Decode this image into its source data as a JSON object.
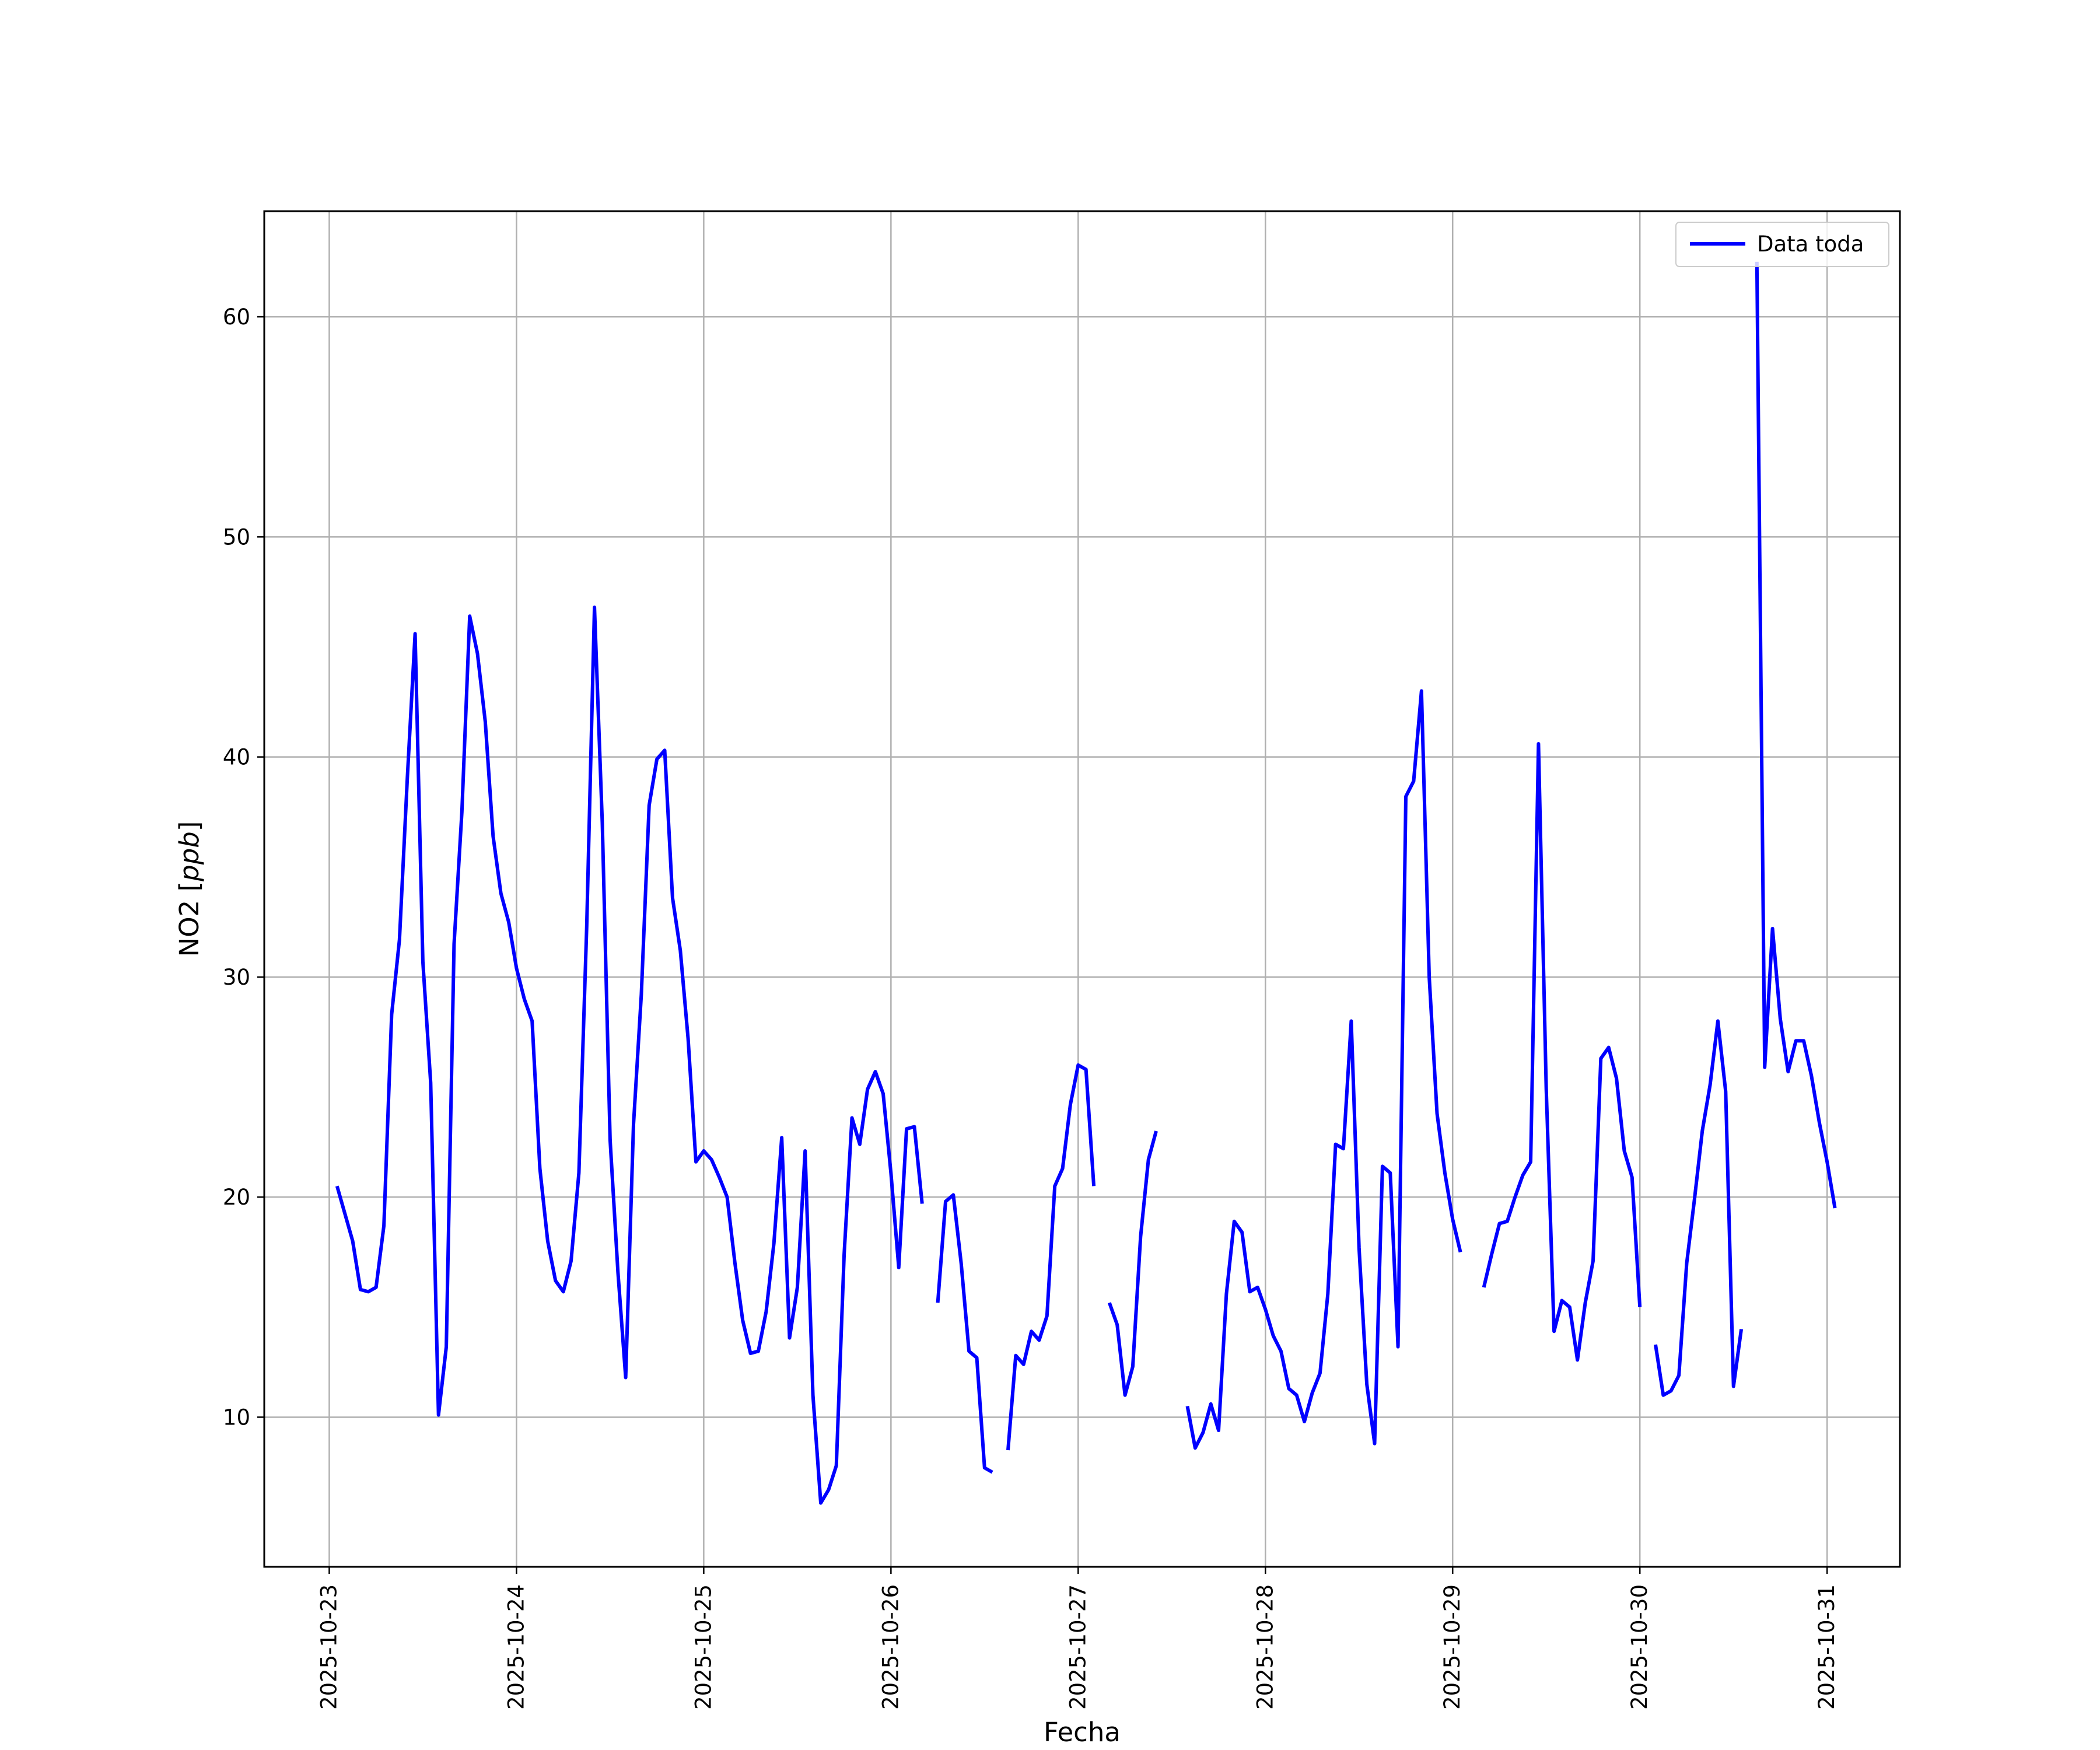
{
  "chart_data": {
    "type": "line",
    "title": "",
    "xlabel": "Fecha",
    "ylabel": "NO2 [ppb]",
    "ylabel_parts": {
      "prefix": "NO2 [",
      "unit": "ppb",
      "suffix": "]"
    },
    "xlim": [
      "2025-10-22 15:40",
      "2025-10-31 09:20"
    ],
    "ylim": [
      3.2,
      64.8
    ],
    "xticks": [
      "2025-10-23",
      "2025-10-24",
      "2025-10-25",
      "2025-10-26",
      "2025-10-27",
      "2025-10-28",
      "2025-10-29",
      "2025-10-30",
      "2025-10-31"
    ],
    "yticks": [
      10,
      20,
      30,
      40,
      50,
      60
    ],
    "grid": true,
    "legend_position": "top-right",
    "series": [
      {
        "name": "Data toda",
        "color": "#0000ff",
        "points": [
          [
            "2025-10-23 01:00",
            20.5
          ],
          [
            "2025-10-23 03:00",
            18.0
          ],
          [
            "2025-10-23 04:00",
            15.8
          ],
          [
            "2025-10-23 05:00",
            15.7
          ],
          [
            "2025-10-23 06:00",
            15.9
          ],
          [
            "2025-10-23 07:00",
            18.7
          ],
          [
            "2025-10-23 08:00",
            28.3
          ],
          [
            "2025-10-23 09:00",
            31.7
          ],
          [
            "2025-10-23 10:00",
            39.0
          ],
          [
            "2025-10-23 11:00",
            45.6
          ],
          [
            "2025-10-23 12:00",
            30.7
          ],
          [
            "2025-10-23 13:00",
            25.2
          ],
          [
            "2025-10-23 14:00",
            10.1
          ],
          [
            "2025-10-23 15:00",
            13.2
          ],
          [
            "2025-10-23 16:00",
            31.5
          ],
          [
            "2025-10-23 17:00",
            37.5
          ],
          [
            "2025-10-23 18:00",
            46.4
          ],
          [
            "2025-10-23 19:00",
            44.7
          ],
          [
            "2025-10-23 20:00",
            41.6
          ],
          [
            "2025-10-23 21:00",
            36.4
          ],
          [
            "2025-10-23 22:00",
            33.8
          ],
          [
            "2025-10-23 23:00",
            32.5
          ],
          [
            "2025-10-24 00:00",
            30.4
          ],
          [
            "2025-10-24 01:00",
            29.0
          ],
          [
            "2025-10-24 02:00",
            28.0
          ],
          [
            "2025-10-24 03:00",
            21.3
          ],
          [
            "2025-10-24 04:00",
            18.0
          ],
          [
            "2025-10-24 05:00",
            16.2
          ],
          [
            "2025-10-24 06:00",
            15.7
          ],
          [
            "2025-10-24 07:00",
            17.1
          ],
          [
            "2025-10-24 08:00",
            21.1
          ],
          [
            "2025-10-24 09:00",
            32.3
          ],
          [
            "2025-10-24 10:00",
            46.8
          ],
          [
            "2025-10-24 11:00",
            37.0
          ],
          [
            "2025-10-24 12:00",
            22.6
          ],
          [
            "2025-10-24 13:00",
            16.6
          ],
          [
            "2025-10-24 14:00",
            11.8
          ],
          [
            "2025-10-24 15:00",
            23.3
          ],
          [
            "2025-10-24 16:00",
            29.2
          ],
          [
            "2025-10-24 17:00",
            37.8
          ],
          [
            "2025-10-24 18:00",
            39.9
          ],
          [
            "2025-10-24 19:00",
            40.3
          ],
          [
            "2025-10-24 20:00",
            33.6
          ],
          [
            "2025-10-24 21:00",
            31.2
          ],
          [
            "2025-10-24 22:00",
            27.2
          ],
          [
            "2025-10-24 23:00",
            21.6
          ],
          [
            "2025-10-25 00:00",
            22.1
          ],
          [
            "2025-10-25 01:00",
            21.7
          ],
          [
            "2025-10-25 02:00",
            20.9
          ],
          [
            "2025-10-25 03:00",
            20.0
          ],
          [
            "2025-10-25 04:00",
            17.0
          ],
          [
            "2025-10-25 05:00",
            14.4
          ],
          [
            "2025-10-25 06:00",
            12.9
          ],
          [
            "2025-10-25 07:00",
            13.0
          ],
          [
            "2025-10-25 08:00",
            14.8
          ],
          [
            "2025-10-25 09:00",
            17.9
          ],
          [
            "2025-10-25 10:00",
            22.7
          ],
          [
            "2025-10-25 11:00",
            13.6
          ],
          [
            "2025-10-25 12:00",
            15.9
          ],
          [
            "2025-10-25 13:00",
            22.1
          ],
          [
            "2025-10-25 14:00",
            11.0
          ],
          [
            "2025-10-25 15:00",
            6.1
          ],
          [
            "2025-10-25 16:00",
            6.7
          ],
          [
            "2025-10-25 17:00",
            7.8
          ],
          [
            "2025-10-25 18:00",
            17.4
          ],
          [
            "2025-10-25 19:00",
            23.6
          ],
          [
            "2025-10-25 20:00",
            22.4
          ],
          [
            "2025-10-25 21:00",
            24.9
          ],
          [
            "2025-10-25 22:00",
            25.7
          ],
          [
            "2025-10-25 23:00",
            24.7
          ],
          [
            "2025-10-26 00:00",
            21.1
          ],
          [
            "2025-10-26 01:00",
            16.8
          ],
          [
            "2025-10-26 02:00",
            23.1
          ],
          [
            "2025-10-26 03:00",
            23.2
          ],
          [
            "2025-10-26 04:00",
            19.7
          ],
          null,
          [
            "2025-10-26 06:00",
            15.2
          ],
          [
            "2025-10-26 07:00",
            19.8
          ],
          [
            "2025-10-26 08:00",
            20.1
          ],
          [
            "2025-10-26 09:00",
            17.0
          ],
          [
            "2025-10-26 10:00",
            13.0
          ],
          [
            "2025-10-26 11:00",
            12.7
          ],
          [
            "2025-10-26 12:00",
            7.7
          ],
          [
            "2025-10-26 13:00",
            7.5
          ],
          null,
          [
            "2025-10-26 15:00",
            8.5
          ],
          [
            "2025-10-26 16:00",
            12.8
          ],
          [
            "2025-10-26 17:00",
            12.4
          ],
          [
            "2025-10-26 18:00",
            13.9
          ],
          [
            "2025-10-26 19:00",
            13.5
          ],
          [
            "2025-10-26 20:00",
            14.6
          ],
          [
            "2025-10-26 21:00",
            20.5
          ],
          [
            "2025-10-26 22:00",
            21.3
          ],
          [
            "2025-10-26 23:00",
            24.2
          ],
          [
            "2025-10-27 00:00",
            26.0
          ],
          [
            "2025-10-27 01:00",
            25.8
          ],
          [
            "2025-10-27 02:00",
            20.5
          ],
          null,
          [
            "2025-10-27 04:00",
            15.2
          ],
          [
            "2025-10-27 05:00",
            14.2
          ],
          [
            "2025-10-27 06:00",
            11.0
          ],
          [
            "2025-10-27 07:00",
            12.3
          ],
          [
            "2025-10-27 08:00",
            18.2
          ],
          [
            "2025-10-27 09:00",
            21.7
          ],
          [
            "2025-10-27 10:00",
            23.0
          ],
          null,
          [
            "2025-10-27 14:00",
            10.5
          ],
          [
            "2025-10-27 15:00",
            8.6
          ],
          [
            "2025-10-27 16:00",
            9.3
          ],
          [
            "2025-10-27 17:00",
            10.6
          ],
          [
            "2025-10-27 18:00",
            9.4
          ],
          [
            "2025-10-27 19:00",
            15.6
          ],
          [
            "2025-10-27 20:00",
            18.9
          ],
          [
            "2025-10-27 21:00",
            18.4
          ],
          [
            "2025-10-27 22:00",
            15.7
          ],
          [
            "2025-10-27 23:00",
            15.9
          ],
          [
            "2025-10-28 00:00",
            14.9
          ],
          [
            "2025-10-28 01:00",
            13.7
          ],
          [
            "2025-10-28 02:00",
            13.0
          ],
          [
            "2025-10-28 03:00",
            11.3
          ],
          [
            "2025-10-28 04:00",
            11.0
          ],
          [
            "2025-10-28 05:00",
            9.8
          ],
          [
            "2025-10-28 06:00",
            11.1
          ],
          [
            "2025-10-28 07:00",
            12.0
          ],
          [
            "2025-10-28 08:00",
            15.6
          ],
          [
            "2025-10-28 09:00",
            22.4
          ],
          [
            "2025-10-28 10:00",
            22.2
          ],
          [
            "2025-10-28 11:00",
            28.0
          ],
          [
            "2025-10-28 12:00",
            17.7
          ],
          [
            "2025-10-28 13:00",
            11.5
          ],
          [
            "2025-10-28 14:00",
            8.8
          ],
          [
            "2025-10-28 15:00",
            21.4
          ],
          [
            "2025-10-28 16:00",
            21.1
          ],
          [
            "2025-10-28 17:00",
            13.2
          ],
          [
            "2025-10-28 18:00",
            38.2
          ],
          [
            "2025-10-28 19:00",
            38.9
          ],
          [
            "2025-10-28 20:00",
            43.0
          ],
          [
            "2025-10-28 21:00",
            30.0
          ],
          [
            "2025-10-28 22:00",
            23.8
          ],
          [
            "2025-10-28 23:00",
            21.1
          ],
          [
            "2025-10-29 00:00",
            19.0
          ],
          [
            "2025-10-29 01:00",
            17.5
          ],
          null,
          [
            "2025-10-29 04:00",
            15.9
          ],
          [
            "2025-10-29 05:00",
            17.4
          ],
          [
            "2025-10-29 06:00",
            18.8
          ],
          [
            "2025-10-29 07:00",
            18.9
          ],
          [
            "2025-10-29 08:00",
            20.0
          ],
          [
            "2025-10-29 09:00",
            21.0
          ],
          [
            "2025-10-29 10:00",
            21.6
          ],
          [
            "2025-10-29 11:00",
            40.6
          ],
          [
            "2025-10-29 12:00",
            24.9
          ],
          [
            "2025-10-29 13:00",
            13.9
          ],
          [
            "2025-10-29 14:00",
            15.3
          ],
          [
            "2025-10-29 15:00",
            15.0
          ],
          [
            "2025-10-29 16:00",
            12.6
          ],
          [
            "2025-10-29 17:00",
            15.2
          ],
          [
            "2025-10-29 18:00",
            17.1
          ],
          [
            "2025-10-29 19:00",
            26.3
          ],
          [
            "2025-10-29 20:00",
            26.8
          ],
          [
            "2025-10-29 21:00",
            25.4
          ],
          [
            "2025-10-29 22:00",
            22.1
          ],
          [
            "2025-10-29 23:00",
            20.9
          ],
          [
            "2025-10-30 00:00",
            15.0
          ],
          null,
          [
            "2025-10-30 02:00",
            13.3
          ],
          [
            "2025-10-30 03:00",
            11.0
          ],
          [
            "2025-10-30 04:00",
            11.2
          ],
          [
            "2025-10-30 05:00",
            11.9
          ],
          [
            "2025-10-30 06:00",
            17.0
          ],
          [
            "2025-10-30 07:00",
            19.9
          ],
          [
            "2025-10-30 08:00",
            23.0
          ],
          [
            "2025-10-30 09:00",
            25.1
          ],
          [
            "2025-10-30 10:00",
            28.0
          ],
          [
            "2025-10-30 11:00",
            24.8
          ],
          [
            "2025-10-30 12:00",
            11.4
          ],
          [
            "2025-10-30 13:00",
            14.0
          ],
          null,
          [
            "2025-10-30 15:00",
            62.5
          ],
          [
            "2025-10-30 16:00",
            25.9
          ],
          [
            "2025-10-30 17:00",
            32.2
          ],
          [
            "2025-10-30 18:00",
            28.1
          ],
          [
            "2025-10-30 19:00",
            25.7
          ],
          [
            "2025-10-30 20:00",
            27.1
          ],
          [
            "2025-10-30 21:00",
            27.1
          ],
          [
            "2025-10-30 22:00",
            25.5
          ],
          [
            "2025-10-30 23:00",
            23.4
          ],
          [
            "2025-10-31 00:00",
            21.6
          ],
          [
            "2025-10-31 01:00",
            19.5
          ]
        ]
      }
    ]
  }
}
